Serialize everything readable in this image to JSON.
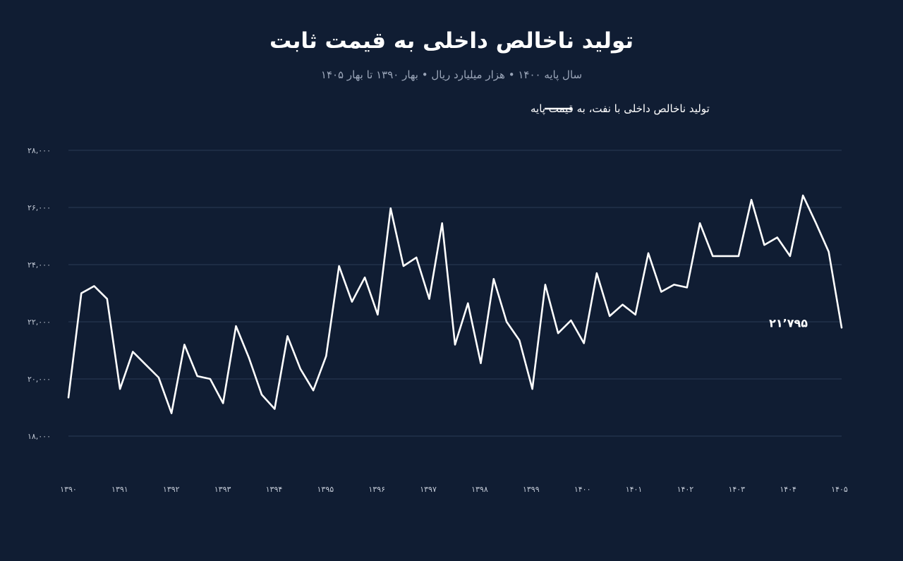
{
  "chart_data": {
    "type": "line",
    "title": "تولید ناخالص داخلی به قیمت ثابت",
    "subtitle": "سال پایه ۱۴۰۰ • هزار میلیارد ریال • بهار ۱۳۹۰ تا بهار ۱۴۰۵",
    "legend_position": "top-center",
    "grid": true,
    "ylim": [
      18000,
      28000
    ],
    "yticks": [
      18000,
      20000,
      22000,
      24000,
      26000,
      28000
    ],
    "ytick_labels": [
      "۱۸,۰۰۰",
      "۲۰,۰۰۰",
      "۲۲,۰۰۰",
      "۲۴,۰۰۰",
      "۲۶,۰۰۰",
      "۲۸,۰۰۰"
    ],
    "xtick_labels": [
      "۱۳۹۰",
      "۱۳۹۱",
      "۱۳۹۲",
      "۱۳۹۳",
      "۱۳۹۴",
      "۱۳۹۵",
      "۱۳۹۶",
      "۱۳۹۷",
      "۱۳۹۸",
      "۱۳۹۹",
      "۱۴۰۰",
      "۱۴۰۱",
      "۱۴۰۲",
      "۱۴۰۳",
      "۱۴۰۴",
      "۱۴۰۵"
    ],
    "end_label": "۲۱٬۷۹۵",
    "colors": {
      "background": "#101d33",
      "line": "#ffffff",
      "grid": "#2a3a56",
      "subtitle": "#9aa5b8"
    },
    "series": [
      {
        "name": "تولید ناخالص داخلی با نفت، به قیمت پایه",
        "values": [
          19350,
          23000,
          23250,
          22800,
          19650,
          20950,
          20500,
          20050,
          18800,
          21200,
          20100,
          20000,
          19150,
          21850,
          20750,
          19450,
          18950,
          21500,
          20350,
          19600,
          20800,
          23950,
          22700,
          23550,
          22250,
          25970,
          23950,
          24250,
          22800,
          25450,
          21200,
          22650,
          20550,
          23500,
          22000,
          21350,
          19650,
          23300,
          21600,
          22050,
          21250,
          23700,
          22200,
          22600,
          22250,
          24400,
          23050,
          23300,
          23200,
          25450,
          24300,
          24300,
          24300,
          26270,
          24690,
          24950,
          24300,
          26420,
          25460,
          24450,
          21795
        ]
      }
    ]
  }
}
